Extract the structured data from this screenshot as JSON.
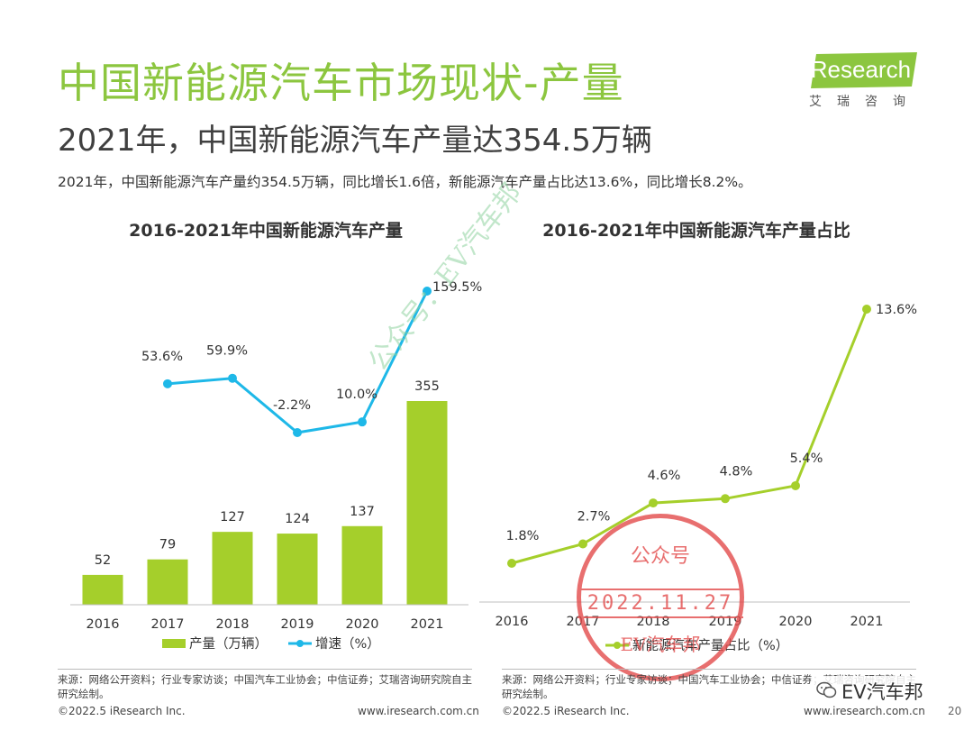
{
  "header": {
    "title": "中国新能源汽车市场现状-产量",
    "subtitle": "2021年，中国新能源汽车产量达354.5万辆",
    "summary": "2021年，中国新能源汽车产量约354.5万辆，同比增长1.6倍，新能源汽车产量占比达13.6%，同比增长8.2%。"
  },
  "logo": {
    "brand": "iResearch",
    "brand_cn": "艾瑞咨询",
    "color": "#8cc63f"
  },
  "colors": {
    "bar": "#a5cf2b",
    "growth_line": "#1eb8e8",
    "share_line": "#a5cf2b",
    "title": "#8cc63f"
  },
  "chart_data": [
    {
      "type": "bar",
      "title": "2016-2021年中国新能源汽车产量",
      "categories": [
        "2016",
        "2017",
        "2018",
        "2019",
        "2020",
        "2021"
      ],
      "series": [
        {
          "name": "产量（万辆）",
          "type": "bar",
          "values": [
            52,
            79,
            127,
            124,
            137,
            355
          ],
          "labels": [
            "52",
            "79",
            "127",
            "124",
            "137",
            "355"
          ]
        },
        {
          "name": "增速（%）",
          "type": "line",
          "values": [
            null,
            53.6,
            59.9,
            -2.2,
            10.0,
            159.5
          ],
          "labels": [
            "",
            "53.6%",
            "59.9%",
            "-2.2%",
            "10.0%",
            "159.5%"
          ]
        }
      ],
      "grid": false,
      "legend": "bottom"
    },
    {
      "type": "line",
      "title": "2016-2021年中国新能源汽车产量占比",
      "categories": [
        "2016",
        "2017",
        "2018",
        "2019",
        "2020",
        "2021"
      ],
      "series": [
        {
          "name": "新能源汽车产量占比（%）",
          "values": [
            1.8,
            2.7,
            4.6,
            4.8,
            5.4,
            13.6
          ],
          "labels": [
            "1.8%",
            "2.7%",
            "4.6%",
            "4.8%",
            "5.4%",
            "13.6%"
          ]
        }
      ],
      "grid": false,
      "legend": "bottom"
    }
  ],
  "footer": {
    "source_left": "来源：网络公开资料；行业专家访谈；中国汽车工业协会；中信证券；艾瑞咨询研究院自主研究绘制。",
    "source_right": "来源：网络公开资料；行业专家访谈；中国汽车工业协会；中信证券；艾瑞咨询研究院自主研究绘制。",
    "copyright": "©2022.5 iResearch Inc.",
    "website": "www.iresearch.com.cn",
    "page_number": "20"
  },
  "watermark": {
    "text": "公众号：EV汽车邦"
  },
  "stamp": {
    "top": "公众号",
    "date": "2022.11.27",
    "bottom": "EV汽车邦"
  },
  "wechat": {
    "account": "EV汽车邦"
  }
}
